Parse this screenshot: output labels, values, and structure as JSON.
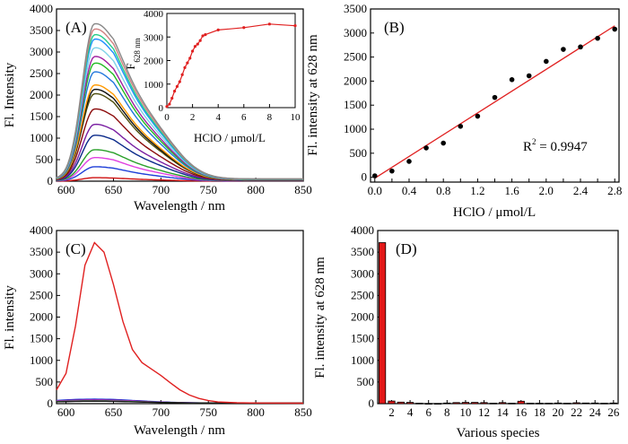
{
  "chart_data": [
    {
      "panel": "(A)",
      "type": "line",
      "xlabel": "Wavelength / nm",
      "ylabel": "Fl. Intensity",
      "xlim": [
        590,
        850
      ],
      "ylim": [
        0,
        4000
      ],
      "xticks": [
        600,
        650,
        700,
        750,
        800,
        850
      ],
      "yticks": [
        0,
        500,
        1000,
        1500,
        2000,
        2500,
        3000,
        3500,
        4000
      ],
      "peak_x": 630,
      "series": [
        {
          "color": "#d11111",
          "peak": 80
        },
        {
          "color": "#1f3fd8",
          "peak": 330
        },
        {
          "color": "#e040e0",
          "peak": 540
        },
        {
          "color": "#2aa02a",
          "peak": 720
        },
        {
          "color": "#0b2a8a",
          "peak": 1050
        },
        {
          "color": "#7a1fa2",
          "peak": 1300
        },
        {
          "color": "#8b0a0a",
          "peak": 1650
        },
        {
          "color": "#505010",
          "peak": 2000
        },
        {
          "color": "#111111",
          "peak": 2100
        },
        {
          "color": "#ff9900",
          "peak": 2200
        },
        {
          "color": "#2277dd",
          "peak": 2500
        },
        {
          "color": "#22bb22",
          "peak": 2700
        },
        {
          "color": "#a020a0",
          "peak": 2850
        },
        {
          "color": "#7fd3e8",
          "peak": 3050
        },
        {
          "color": "#1f90ff",
          "peak": 3250
        },
        {
          "color": "#22cc88",
          "peak": 3350
        },
        {
          "color": "#d08080",
          "peak": 3480
        },
        {
          "color": "#888888",
          "peak": 3600
        }
      ],
      "inset": {
        "xlabel": "HClO / μmol/L",
        "ylabel_main": "F",
        "ylabel_sub": "628 nm",
        "xlim": [
          0,
          10
        ],
        "ylim": [
          0,
          4000
        ],
        "xticks": [
          0,
          2,
          4,
          6,
          8,
          10
        ],
        "yticks": [
          0,
          1000,
          2000,
          3000,
          4000
        ],
        "x": [
          0,
          0.2,
          0.4,
          0.6,
          0.8,
          1.0,
          1.2,
          1.4,
          1.6,
          1.8,
          2.0,
          2.2,
          2.4,
          2.6,
          2.8,
          3.0,
          4.0,
          6.0,
          8.0,
          10.0
        ],
        "y": [
          50,
          150,
          400,
          700,
          900,
          1100,
          1400,
          1700,
          1900,
          2100,
          2400,
          2600,
          2700,
          2850,
          3050,
          3100,
          3300,
          3400,
          3550,
          3480
        ]
      }
    },
    {
      "panel": "(B)",
      "type": "scatter",
      "xlabel": "HClO / μmol/L",
      "ylabel": "Fl. intensity at 628 nm",
      "xlim": [
        -0.05,
        2.85
      ],
      "ylim": [
        -100,
        3500
      ],
      "xticks": [
        0.0,
        0.2,
        0.4,
        0.6,
        0.8,
        1.0,
        1.2,
        1.4,
        1.6,
        1.8,
        2.0,
        2.2,
        2.4,
        2.6,
        2.8
      ],
      "xtick_labels": [
        "0.0",
        "",
        "0.4",
        "",
        "0.8",
        "",
        "1.2",
        "",
        "1.6",
        "",
        "2.0",
        "",
        "2.4",
        "",
        "2.8"
      ],
      "yticks": [
        0,
        500,
        1000,
        1500,
        2000,
        2500,
        3000,
        3500
      ],
      "x": [
        0.0,
        0.2,
        0.4,
        0.6,
        0.8,
        1.0,
        1.2,
        1.4,
        1.6,
        1.8,
        2.0,
        2.2,
        2.4,
        2.6,
        2.8
      ],
      "y": [
        30,
        130,
        330,
        610,
        710,
        1060,
        1270,
        1660,
        2030,
        2110,
        2410,
        2660,
        2710,
        2890,
        3080
      ],
      "fit": {
        "x": [
          0.0,
          2.8
        ],
        "y": [
          -20,
          3150
        ]
      },
      "annotation_main": "R",
      "annotation_sup": "2",
      "annotation_rest": " = 0.9947"
    },
    {
      "panel": "(C)",
      "type": "line",
      "xlabel": "Wavelength / nm",
      "ylabel": "Fl. intensity",
      "xlim": [
        590,
        850
      ],
      "ylim": [
        0,
        4000
      ],
      "xticks": [
        600,
        650,
        700,
        750,
        800,
        850
      ],
      "yticks": [
        0,
        500,
        1000,
        1500,
        2000,
        2500,
        3000,
        3500,
        4000
      ],
      "red_curve": {
        "x": [
          590,
          600,
          610,
          620,
          630,
          640,
          650,
          660,
          670,
          680,
          690,
          700,
          710,
          720,
          730,
          740,
          750,
          760,
          780,
          800,
          850
        ],
        "y": [
          320,
          700,
          1800,
          3200,
          3720,
          3500,
          2750,
          1900,
          1250,
          950,
          800,
          650,
          480,
          320,
          200,
          120,
          70,
          40,
          20,
          15,
          10
        ]
      },
      "baseline_colors": [
        "#1f3fd8",
        "#7a1fa2",
        "#e040e0",
        "#2aa02a",
        "#111111"
      ],
      "baseline_peaks": [
        90,
        75,
        60,
        50,
        40
      ]
    },
    {
      "panel": "(D)",
      "type": "bar",
      "xlabel": "Various species",
      "ylabel": "Fl. intensity at 628 nm",
      "ylim": [
        0,
        4000
      ],
      "yticks": [
        0,
        500,
        1000,
        1500,
        2000,
        2500,
        3000,
        3500,
        4000
      ],
      "xtick_labels": [
        "2",
        "4",
        "6",
        "8",
        "10",
        "12",
        "14",
        "16",
        "18",
        "20",
        "22",
        "24",
        "26"
      ],
      "categories": [
        1,
        2,
        3,
        4,
        5,
        6,
        7,
        8,
        9,
        10,
        11,
        12,
        13,
        14,
        15,
        16,
        17,
        18,
        19,
        20,
        21,
        22,
        23,
        24,
        25,
        26
      ],
      "values": [
        3720,
        60,
        35,
        30,
        10,
        5,
        5,
        15,
        25,
        30,
        30,
        25,
        10,
        25,
        10,
        55,
        10,
        10,
        10,
        15,
        10,
        20,
        15,
        15,
        10,
        15
      ]
    }
  ]
}
